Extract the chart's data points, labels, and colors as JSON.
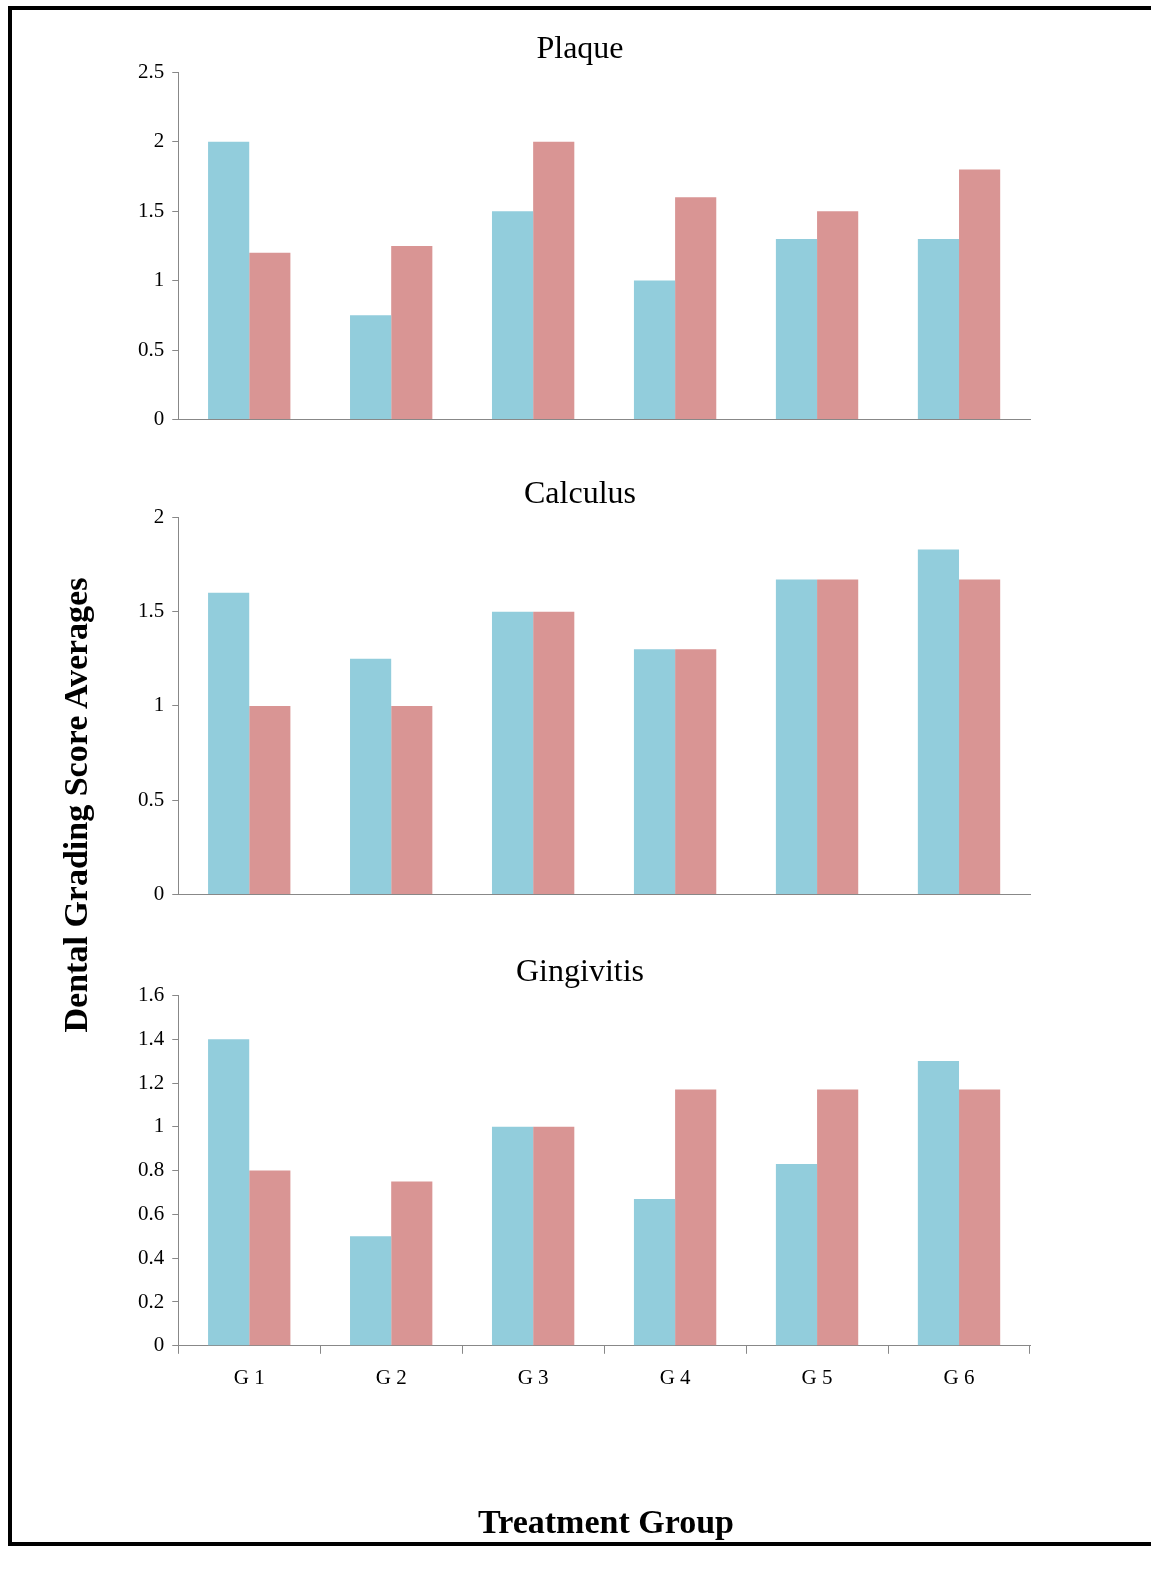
{
  "chart_data": [
    {
      "type": "bar",
      "title": "Plaque",
      "categories": [
        null,
        null,
        null,
        null,
        null,
        null
      ],
      "ylim": [
        0,
        2.5
      ],
      "yticks": [
        0,
        0.5,
        1,
        1.5,
        2,
        2.5
      ],
      "series": [
        {
          "color": "#92cddc",
          "values": [
            2,
            0.75,
            1.5,
            1,
            1.3,
            1.3
          ]
        },
        {
          "color": "#d99594",
          "values": [
            1.2,
            1.25,
            2,
            1.6,
            1.5,
            1.8
          ]
        }
      ]
    },
    {
      "type": "bar",
      "title": "Calculus",
      "ylabel": "Dental Grading Score Averages",
      "categories": [
        null,
        null,
        null,
        null,
        null,
        null
      ],
      "ylim": [
        0,
        2
      ],
      "yticks": [
        0,
        0.5,
        1,
        1.5,
        2
      ],
      "series": [
        {
          "color": "#92cddc",
          "values": [
            1.6,
            1.25,
            1.5,
            1.3,
            1.67,
            1.83
          ]
        },
        {
          "color": "#d99594",
          "values": [
            1,
            1,
            1.5,
            1.3,
            1.67,
            1.67
          ]
        }
      ]
    },
    {
      "type": "bar",
      "title": "Gingivitis",
      "xlabel": "Treatment Group",
      "categories": [
        "G 1",
        "G 2",
        "G 3",
        "G 4",
        "G 5",
        "G 6"
      ],
      "ylim": [
        0,
        1.6
      ],
      "yticks": [
        0,
        0.2,
        0.4,
        0.6,
        0.8,
        1,
        1.2,
        1.4,
        1.6
      ],
      "series": [
        {
          "color": "#92cddc",
          "values": [
            1.4,
            0.5,
            1,
            0.67,
            0.83,
            1.3
          ]
        },
        {
          "color": "#d99594",
          "values": [
            0.8,
            0.75,
            1,
            1.17,
            1.17,
            1.17
          ]
        }
      ]
    }
  ]
}
